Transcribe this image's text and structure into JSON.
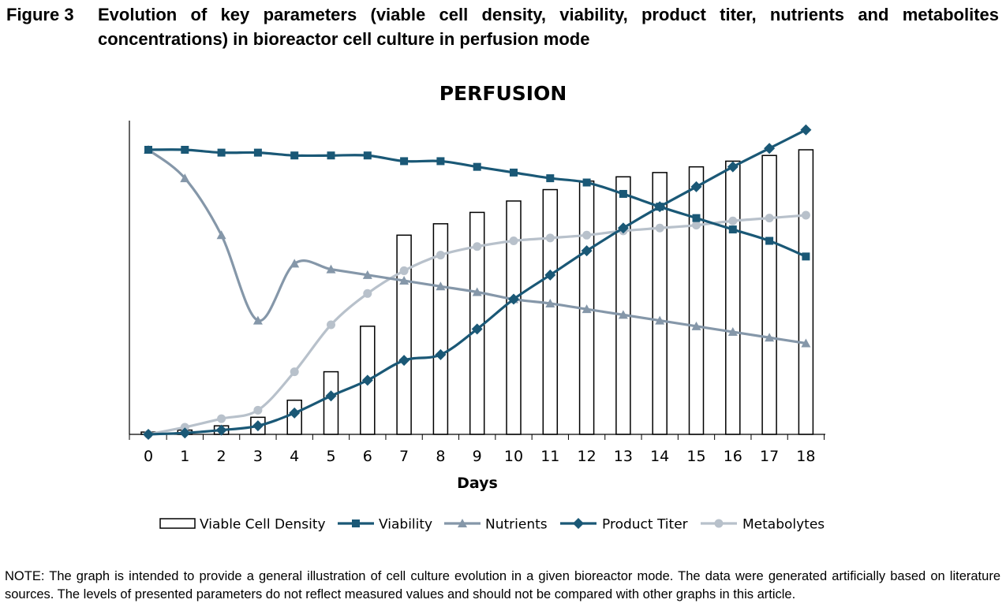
{
  "figure": {
    "label": "Figure 3",
    "caption": "Evolution of key parameters (viable cell density, viability, product titer, nutrients and metabolites concentrations) in bioreactor cell culture in perfusion mode"
  },
  "note": "NOTE: The graph is intended to provide a general illustration of cell culture evolution in a given bioreactor mode. The data were generated artificially based on literature sources. The levels of presented parameters do not reflect measured values and should not be compared with other graphs in this article.",
  "colors": {
    "viability": "#1a5876",
    "product_titer": "#1a5876",
    "nutrients": "#8597a9",
    "metabolytes": "#b8c1cb",
    "bars_fill": "#ffffff",
    "bars_stroke": "#000000",
    "axis": "#000000"
  },
  "chart_data": {
    "type": "bar",
    "title": "PERFUSION",
    "xlabel": "Days",
    "ylabel": "",
    "categories": [
      "0",
      "1",
      "2",
      "3",
      "4",
      "5",
      "6",
      "7",
      "8",
      "9",
      "10",
      "11",
      "12",
      "13",
      "14",
      "15",
      "16",
      "17",
      "18"
    ],
    "ylim": [
      0,
      100
    ],
    "grid": false,
    "legend_position": "bottom",
    "series": [
      {
        "name": "Viable Cell Density",
        "kind": "bar",
        "marker": "none",
        "values": [
          0.8,
          1.5,
          3,
          6,
          12,
          22,
          38,
          70,
          74,
          78,
          82,
          86,
          89,
          90.5,
          92,
          94,
          96,
          98,
          100
        ]
      },
      {
        "name": "Viability",
        "kind": "line",
        "marker": "square",
        "values": [
          100,
          100,
          99,
          99,
          98,
          98,
          98,
          96,
          96,
          94,
          92,
          90,
          88.5,
          84.5,
          80,
          76,
          72,
          68,
          62.5
        ]
      },
      {
        "name": "Nutrients",
        "kind": "line",
        "marker": "triangle",
        "values": [
          100,
          90,
          70,
          40,
          60,
          58,
          56,
          54,
          52,
          50,
          47.5,
          46,
          44,
          42,
          40,
          38,
          36,
          34,
          32
        ]
      },
      {
        "name": "Product Titer",
        "kind": "line",
        "marker": "diamond",
        "values": [
          0,
          0.5,
          1.5,
          3,
          7.5,
          13.5,
          19,
          26,
          28,
          37,
          47.5,
          56,
          64.5,
          72.5,
          80,
          87,
          94,
          100.5,
          107
        ]
      },
      {
        "name": "Metabolytes",
        "kind": "line",
        "marker": "circle",
        "values": [
          0,
          2.5,
          5.5,
          8.5,
          22,
          38.5,
          49.5,
          57.5,
          63,
          66,
          68,
          69,
          70,
          71.5,
          72.5,
          73.5,
          75,
          76,
          77
        ]
      }
    ]
  }
}
